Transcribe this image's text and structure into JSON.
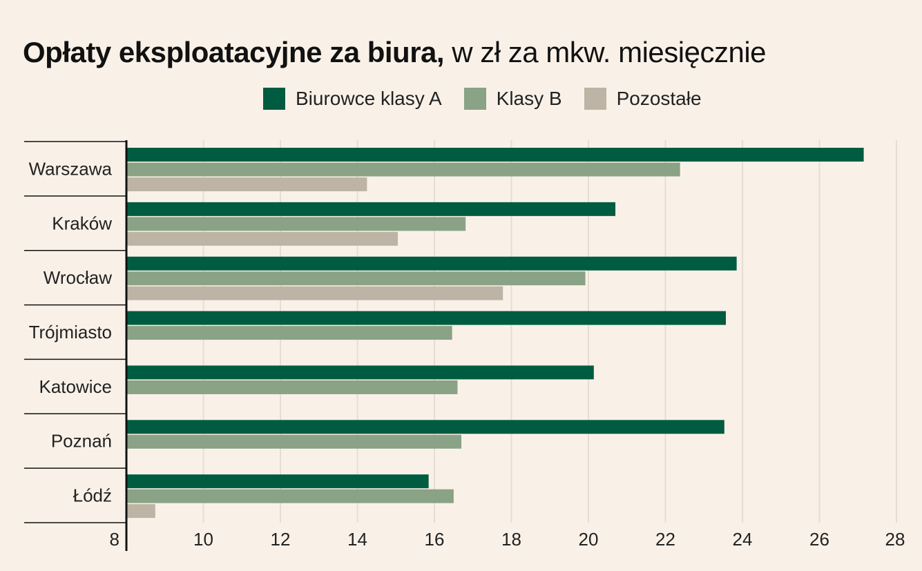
{
  "title_bold": "Opłaty eksploatacyjne za biura,",
  "title_rest": " w zł za mkw. miesięcznie",
  "colors": {
    "background": "#f9f1e8",
    "class_a": "#005c40",
    "class_b": "#8aa286",
    "other": "#bdb4a6",
    "grid": "#e6ddd2",
    "axis": "#111111"
  },
  "chart_data": {
    "type": "bar",
    "orientation": "horizontal",
    "categories": [
      "Warszawa",
      "Kraków",
      "Wrocław",
      "Trójmiasto",
      "Katowice",
      "Poznań",
      "Łódź"
    ],
    "series": [
      {
        "name": "Biurowce klasy A",
        "values": [
          27.15,
          20.7,
          23.85,
          23.57,
          20.14,
          23.53,
          15.85
        ]
      },
      {
        "name": "Klasy B",
        "values": [
          22.38,
          16.81,
          19.92,
          16.46,
          16.6,
          16.7,
          16.5
        ]
      },
      {
        "name": "Pozostałe",
        "values": [
          14.25,
          15.05,
          17.78,
          null,
          null,
          null,
          8.75
        ]
      }
    ],
    "xlim": [
      8,
      28
    ],
    "xticks": [
      8,
      10,
      12,
      14,
      16,
      18,
      20,
      22,
      24,
      26,
      28
    ],
    "legend_position": "top-center",
    "grid": true
  }
}
